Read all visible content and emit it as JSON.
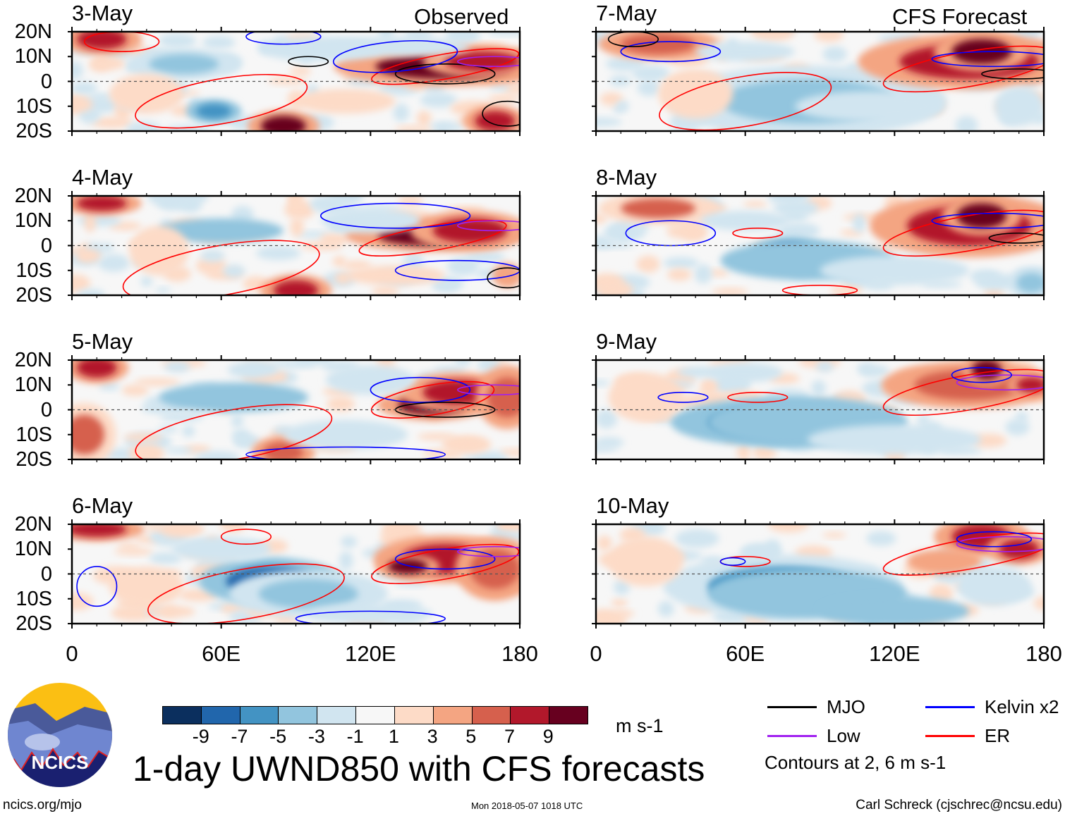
{
  "chart_data": {
    "type": "heatmap",
    "title": "1-day UWND850 with CFS forecasts",
    "variable": "850 hPa zonal wind anomaly",
    "units": "m s-1",
    "column_headers": {
      "left": "Observed",
      "right": "CFS Forecast"
    },
    "panels": [
      {
        "date": "3-May",
        "source": "observed"
      },
      {
        "date": "4-May",
        "source": "observed"
      },
      {
        "date": "5-May",
        "source": "observed"
      },
      {
        "date": "6-May",
        "source": "observed"
      },
      {
        "date": "7-May",
        "source": "forecast"
      },
      {
        "date": "8-May",
        "source": "forecast"
      },
      {
        "date": "9-May",
        "source": "forecast"
      },
      {
        "date": "10-May",
        "source": "forecast"
      }
    ],
    "lat_ticks": [
      "20N",
      "10N",
      "0",
      "10S",
      "20S"
    ],
    "lon_ticks": [
      "0",
      "60E",
      "120E",
      "180"
    ],
    "lat_range": [
      -20,
      20
    ],
    "lon_range": [
      0,
      180
    ],
    "colorbar": {
      "ticks": [
        "-9",
        "-7",
        "-5",
        "-3",
        "-1",
        "1",
        "3",
        "5",
        "7",
        "9"
      ],
      "colors": [
        "#0b2f5e",
        "#2166ac",
        "#4393c3",
        "#92c5de",
        "#d1e5f0",
        "#f7f7f7",
        "#fddbc7",
        "#f4a582",
        "#d6604d",
        "#b2182b",
        "#67001f"
      ],
      "units": "m s-1"
    },
    "legend": [
      {
        "label": "MJO",
        "color": "#000000"
      },
      {
        "label": "Kelvin x2",
        "color": "#0000ff"
      },
      {
        "label": "Low",
        "color": "#a020f0"
      },
      {
        "label": "ER",
        "color": "#ff0000"
      }
    ],
    "contour_note": "Contours at 2, 6 m s-1"
  },
  "footer": {
    "logo_text": "NCICS",
    "url": "ncics.org/mjo",
    "timestamp": "Mon 2018-05-07 1018 UTC",
    "author": "Carl Schreck (cjschrec@ncsu.edu)"
  }
}
